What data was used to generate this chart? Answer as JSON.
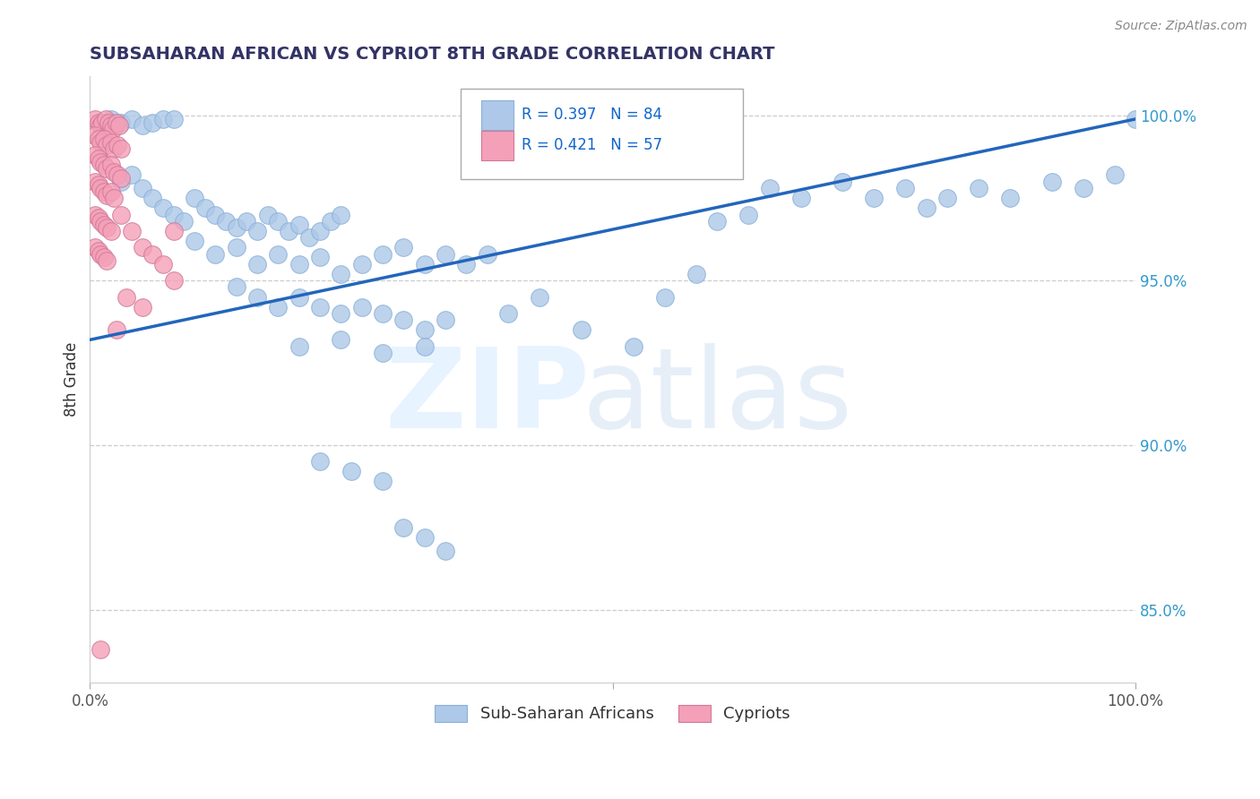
{
  "title": "SUBSAHARAN AFRICAN VS CYPRIOT 8TH GRADE CORRELATION CHART",
  "source": "Source: ZipAtlas.com",
  "ylabel": "8th Grade",
  "yticks": [
    0.85,
    0.9,
    0.95,
    1.0
  ],
  "ytick_labels": [
    "85.0%",
    "90.0%",
    "95.0%",
    "100.0%"
  ],
  "xlim": [
    0.0,
    1.0
  ],
  "ylim": [
    0.828,
    1.012
  ],
  "legend1_label": "R = 0.397   N = 84",
  "legend2_label": "R = 0.421   N = 57",
  "legend_bottom_label1": "Sub-Saharan Africans",
  "legend_bottom_label2": "Cypriots",
  "trendline_color": "#2266bb",
  "scatter_blue_color": "#adc8e8",
  "scatter_blue_edge": "#8ab0d8",
  "scatter_pink_color": "#f4a0b8",
  "scatter_pink_edge": "#d07898",
  "blue_scatter": [
    [
      0.02,
      0.999
    ],
    [
      0.03,
      0.998
    ],
    [
      0.04,
      0.999
    ],
    [
      0.05,
      0.997
    ],
    [
      0.06,
      0.998
    ],
    [
      0.07,
      0.999
    ],
    [
      0.08,
      0.999
    ],
    [
      0.03,
      0.98
    ],
    [
      0.04,
      0.982
    ],
    [
      0.05,
      0.978
    ],
    [
      0.06,
      0.975
    ],
    [
      0.07,
      0.972
    ],
    [
      0.08,
      0.97
    ],
    [
      0.09,
      0.968
    ],
    [
      0.1,
      0.975
    ],
    [
      0.11,
      0.972
    ],
    [
      0.12,
      0.97
    ],
    [
      0.13,
      0.968
    ],
    [
      0.14,
      0.966
    ],
    [
      0.15,
      0.968
    ],
    [
      0.16,
      0.965
    ],
    [
      0.17,
      0.97
    ],
    [
      0.18,
      0.968
    ],
    [
      0.19,
      0.965
    ],
    [
      0.2,
      0.967
    ],
    [
      0.21,
      0.963
    ],
    [
      0.22,
      0.965
    ],
    [
      0.23,
      0.968
    ],
    [
      0.24,
      0.97
    ],
    [
      0.1,
      0.962
    ],
    [
      0.12,
      0.958
    ],
    [
      0.14,
      0.96
    ],
    [
      0.16,
      0.955
    ],
    [
      0.18,
      0.958
    ],
    [
      0.2,
      0.955
    ],
    [
      0.22,
      0.957
    ],
    [
      0.24,
      0.952
    ],
    [
      0.26,
      0.955
    ],
    [
      0.28,
      0.958
    ],
    [
      0.3,
      0.96
    ],
    [
      0.32,
      0.955
    ],
    [
      0.34,
      0.958
    ],
    [
      0.36,
      0.955
    ],
    [
      0.38,
      0.958
    ],
    [
      0.14,
      0.948
    ],
    [
      0.16,
      0.945
    ],
    [
      0.18,
      0.942
    ],
    [
      0.2,
      0.945
    ],
    [
      0.22,
      0.942
    ],
    [
      0.24,
      0.94
    ],
    [
      0.26,
      0.942
    ],
    [
      0.28,
      0.94
    ],
    [
      0.3,
      0.938
    ],
    [
      0.32,
      0.935
    ],
    [
      0.34,
      0.938
    ],
    [
      0.2,
      0.93
    ],
    [
      0.24,
      0.932
    ],
    [
      0.28,
      0.928
    ],
    [
      0.32,
      0.93
    ],
    [
      0.22,
      0.895
    ],
    [
      0.25,
      0.892
    ],
    [
      0.28,
      0.889
    ],
    [
      0.3,
      0.875
    ],
    [
      0.32,
      0.872
    ],
    [
      0.34,
      0.868
    ],
    [
      0.4,
      0.94
    ],
    [
      0.43,
      0.945
    ],
    [
      0.47,
      0.935
    ],
    [
      0.52,
      0.93
    ],
    [
      0.55,
      0.945
    ],
    [
      0.58,
      0.952
    ],
    [
      0.6,
      0.968
    ],
    [
      0.63,
      0.97
    ],
    [
      0.65,
      0.978
    ],
    [
      0.68,
      0.975
    ],
    [
      0.72,
      0.98
    ],
    [
      0.75,
      0.975
    ],
    [
      0.78,
      0.978
    ],
    [
      0.8,
      0.972
    ],
    [
      0.82,
      0.975
    ],
    [
      0.85,
      0.978
    ],
    [
      0.88,
      0.975
    ],
    [
      0.92,
      0.98
    ],
    [
      0.95,
      0.978
    ],
    [
      0.98,
      0.982
    ],
    [
      1.0,
      0.999
    ]
  ],
  "pink_scatter": [
    [
      0.005,
      0.999
    ],
    [
      0.008,
      0.998
    ],
    [
      0.01,
      0.997
    ],
    [
      0.012,
      0.998
    ],
    [
      0.015,
      0.999
    ],
    [
      0.018,
      0.998
    ],
    [
      0.02,
      0.997
    ],
    [
      0.022,
      0.996
    ],
    [
      0.025,
      0.998
    ],
    [
      0.028,
      0.997
    ],
    [
      0.005,
      0.994
    ],
    [
      0.008,
      0.993
    ],
    [
      0.01,
      0.992
    ],
    [
      0.013,
      0.993
    ],
    [
      0.016,
      0.991
    ],
    [
      0.02,
      0.992
    ],
    [
      0.023,
      0.99
    ],
    [
      0.026,
      0.991
    ],
    [
      0.03,
      0.99
    ],
    [
      0.005,
      0.988
    ],
    [
      0.008,
      0.987
    ],
    [
      0.01,
      0.986
    ],
    [
      0.013,
      0.985
    ],
    [
      0.016,
      0.984
    ],
    [
      0.02,
      0.985
    ],
    [
      0.023,
      0.983
    ],
    [
      0.026,
      0.982
    ],
    [
      0.03,
      0.981
    ],
    [
      0.005,
      0.98
    ],
    [
      0.008,
      0.979
    ],
    [
      0.01,
      0.978
    ],
    [
      0.013,
      0.977
    ],
    [
      0.016,
      0.976
    ],
    [
      0.02,
      0.977
    ],
    [
      0.023,
      0.975
    ],
    [
      0.005,
      0.97
    ],
    [
      0.008,
      0.969
    ],
    [
      0.01,
      0.968
    ],
    [
      0.013,
      0.967
    ],
    [
      0.016,
      0.966
    ],
    [
      0.02,
      0.965
    ],
    [
      0.005,
      0.96
    ],
    [
      0.008,
      0.959
    ],
    [
      0.01,
      0.958
    ],
    [
      0.013,
      0.957
    ],
    [
      0.016,
      0.956
    ],
    [
      0.03,
      0.97
    ],
    [
      0.04,
      0.965
    ],
    [
      0.05,
      0.96
    ],
    [
      0.06,
      0.958
    ],
    [
      0.07,
      0.955
    ],
    [
      0.08,
      0.95
    ],
    [
      0.035,
      0.945
    ],
    [
      0.05,
      0.942
    ],
    [
      0.025,
      0.935
    ],
    [
      0.01,
      0.838
    ],
    [
      0.08,
      0.965
    ]
  ],
  "trendline_x": [
    0.0,
    1.0
  ],
  "trendline_y": [
    0.932,
    0.999
  ]
}
